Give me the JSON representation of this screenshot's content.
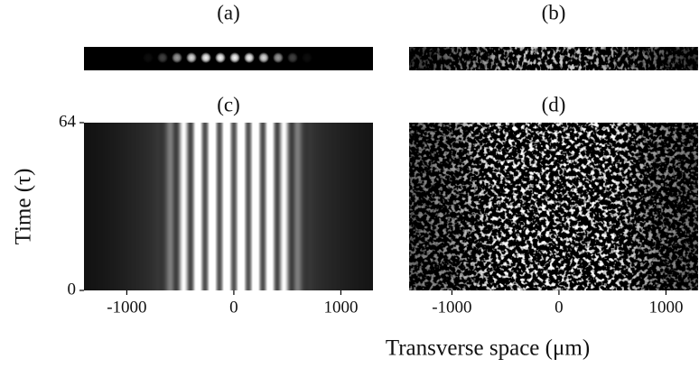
{
  "figure": {
    "xlabel": "Transverse space (μm)",
    "ylabel": "Time (τ)"
  },
  "chart_data": [
    {
      "type": "image-strip",
      "title": "(a)",
      "pattern": "spots"
    },
    {
      "type": "image-strip",
      "title": "(b)",
      "pattern": "speckle"
    },
    {
      "type": "heatmap",
      "title": "(c)",
      "pattern": "fringes",
      "xlim": [
        -1400,
        1300
      ],
      "xticks": [
        -1000,
        0,
        1000
      ],
      "ylim": [
        0,
        64
      ],
      "yticks": [
        0,
        64
      ]
    },
    {
      "type": "heatmap",
      "title": "(d)",
      "pattern": "speckle",
      "xlim": [
        -1400,
        1300
      ],
      "xticks": [
        -1000,
        0,
        1000
      ]
    }
  ]
}
